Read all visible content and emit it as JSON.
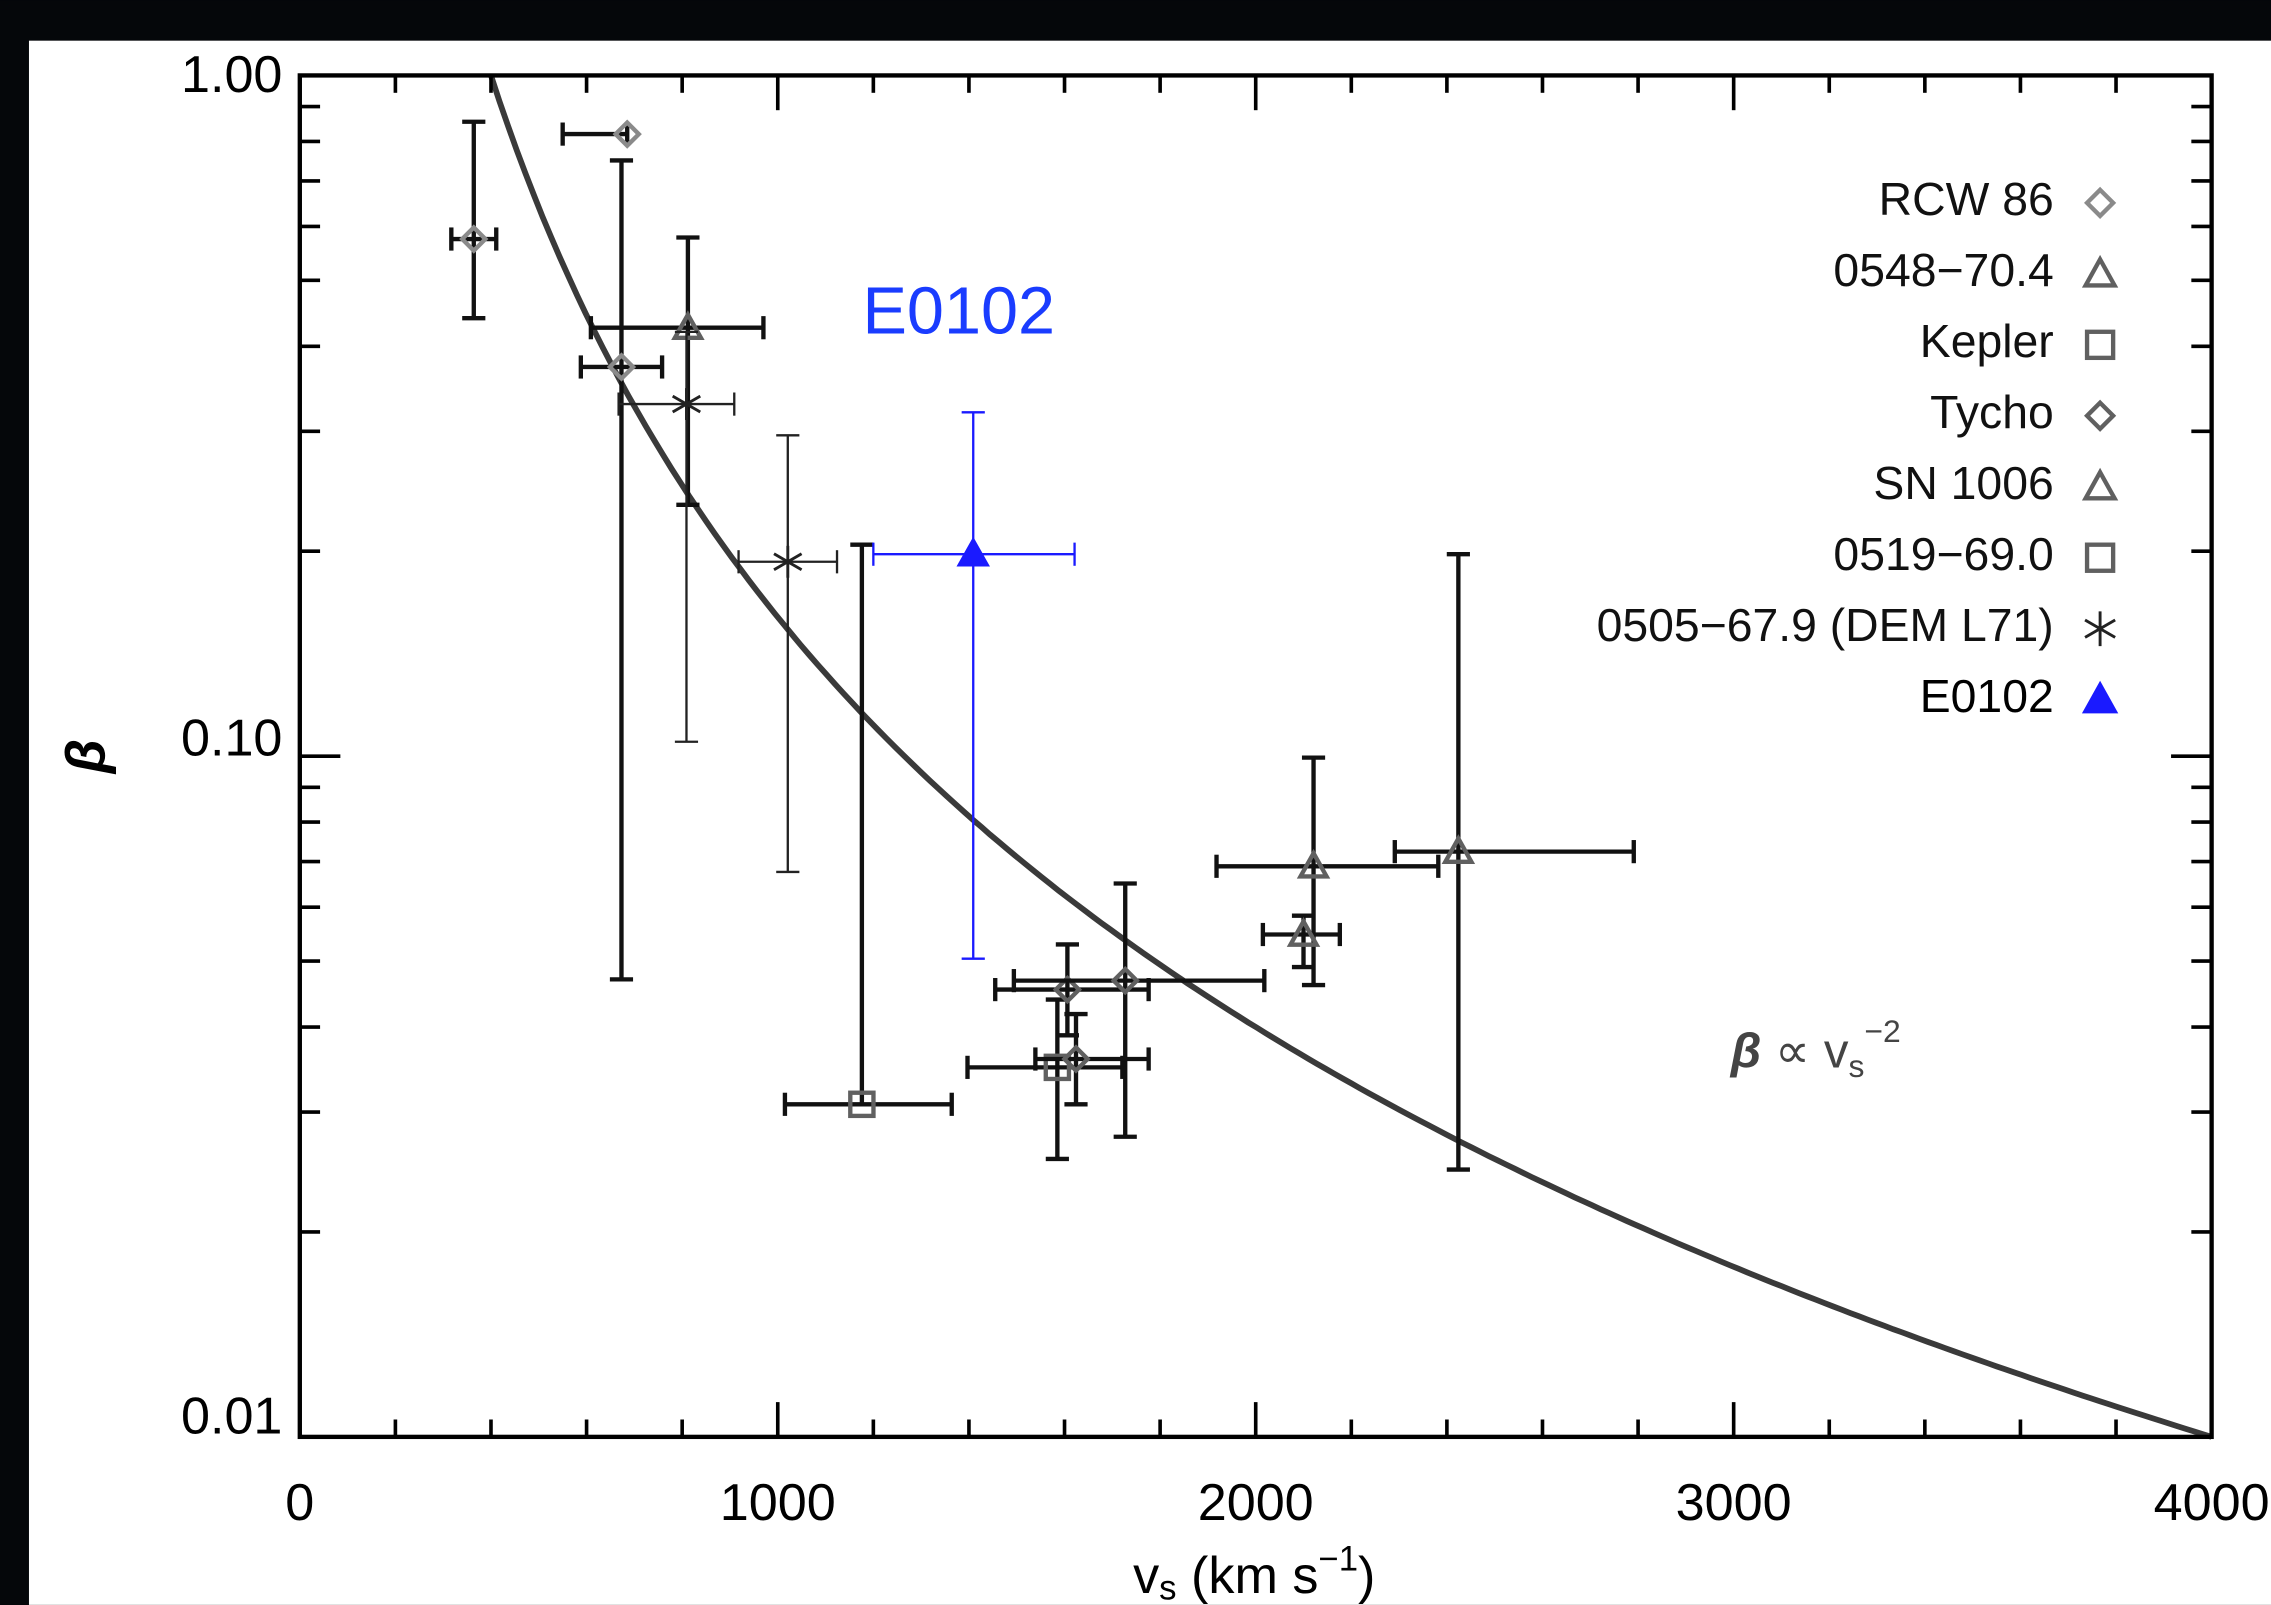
{
  "chart_data": {
    "type": "scatter",
    "ylabel": "β",
    "xlabel": [
      "v",
      "s",
      " (km s",
      "−1",
      ")"
    ],
    "xlim": [
      0,
      4000
    ],
    "ylim": [
      0.01,
      1
    ],
    "log_y": true,
    "xticks": [
      0,
      1000,
      2000,
      3000,
      4000
    ],
    "yticks": [
      {
        "value": 0.01,
        "label": "0.01"
      },
      {
        "value": 0.1,
        "label": "0.10"
      },
      {
        "value": 1,
        "label": "1.00"
      }
    ],
    "xminor_ticks": [
      200,
      400,
      600,
      800,
      1200,
      1400,
      1600,
      1800,
      2200,
      2400,
      2600,
      2800,
      3200,
      3400,
      3600,
      3800
    ],
    "yminor_ticks": [
      0.02,
      0.03,
      0.04,
      0.05,
      0.06,
      0.07,
      0.08,
      0.09,
      0.2,
      0.3,
      0.4,
      0.5,
      0.6,
      0.7,
      0.8,
      0.9
    ],
    "annotation": "E0102",
    "annotation_color": "#1a3cff",
    "fit": {
      "coefficient": 160000,
      "exponent": -2,
      "xrange": [
        400,
        4000
      ],
      "color": "#3a3a3a",
      "label": [
        "β",
        " ∝ v",
        "s",
        "−2"
      ]
    },
    "legend": "upper right",
    "series": [
      {
        "name": "RCW 86",
        "marker": "diamond",
        "color": "#8a8a8a",
        "bar_color": "#111111",
        "x": [
          364,
          673,
          685
        ],
        "values": [
          0.575,
          0.373,
          0.82
        ],
        "x_low": [
          317,
          588,
          550
        ],
        "x_high": [
          411,
          758,
          685
        ],
        "y_low": [
          0.44,
          0.047,
          null
        ],
        "y_high": [
          0.855,
          0.75,
          null
        ]
      },
      {
        "name": "0548−70.4",
        "marker": "triangle",
        "color": "#606060",
        "bar_color": "#111111",
        "x": [
          812
        ],
        "values": [
          0.426
        ],
        "x_low": [
          609
        ],
        "x_high": [
          970
        ],
        "y_low": [
          0.234
        ],
        "y_high": [
          0.578
        ]
      },
      {
        "name": "Kepler",
        "marker": "square",
        "color": "#606060",
        "bar_color": "#111111",
        "x": [
          1585
        ],
        "values": [
          0.0349
        ],
        "x_low": [
          1397
        ],
        "x_high": [
          1721
        ],
        "y_low": [
          0.0256
        ],
        "y_high": [
          0.0439
        ]
      },
      {
        "name": "Tycho",
        "marker": "diamond",
        "color": "#606060",
        "bar_color": "#111111",
        "x": [
          1606,
          1727,
          1624
        ],
        "values": [
          0.0454,
          0.0468,
          0.0359
        ],
        "x_low": [
          1455,
          1494,
          1539
        ],
        "x_high": [
          1776,
          2018,
          1776
        ],
        "y_low": [
          0.0389,
          0.0276,
          0.0308
        ],
        "y_high": [
          0.0529,
          0.065,
          0.0418
        ]
      },
      {
        "name": "SN 1006",
        "marker": "triangle",
        "color": "#606060",
        "bar_color": "#111111",
        "x": [
          2121,
          2100,
          2424
        ],
        "values": [
          0.0689,
          0.0547,
          0.0724
        ],
        "x_low": [
          1918,
          2015,
          2291
        ],
        "x_high": [
          2382,
          2176,
          2791
        ],
        "y_low": [
          0.0461,
          0.049,
          0.0247
        ],
        "y_high": [
          0.0995,
          0.0583,
          0.198
        ]
      },
      {
        "name": "0519−69.0",
        "marker": "square",
        "color": "#606060",
        "bar_color": "#111111",
        "x": [
          1176
        ],
        "values": [
          0.0308
        ],
        "x_low": [
          1015
        ],
        "x_high": [
          1364
        ],
        "y_low": [
          null
        ],
        "y_high": [
          0.2045
        ]
      },
      {
        "name": "0505−67.9 (DEM L71)",
        "marker": "star",
        "color": "#222222",
        "bar_color": "#222222",
        "x": [
          809,
          1021
        ],
        "values": [
          0.329,
          0.193
        ],
        "x_low": [
          667,
          918
        ],
        "x_high": [
          909,
          1124
        ],
        "y_low": [
          0.105,
          0.0676
        ],
        "y_high": [
          0.42,
          0.296
        ]
      },
      {
        "name": "E0102",
        "marker": "filled-triangle",
        "color": "#1a1aff",
        "bar_color": "#1a1aff",
        "x": [
          1409
        ],
        "values": [
          0.198
        ],
        "x_low": [
          1200
        ],
        "x_high": [
          1621
        ],
        "y_low": [
          0.0504
        ],
        "y_high": [
          0.32
        ]
      }
    ]
  }
}
